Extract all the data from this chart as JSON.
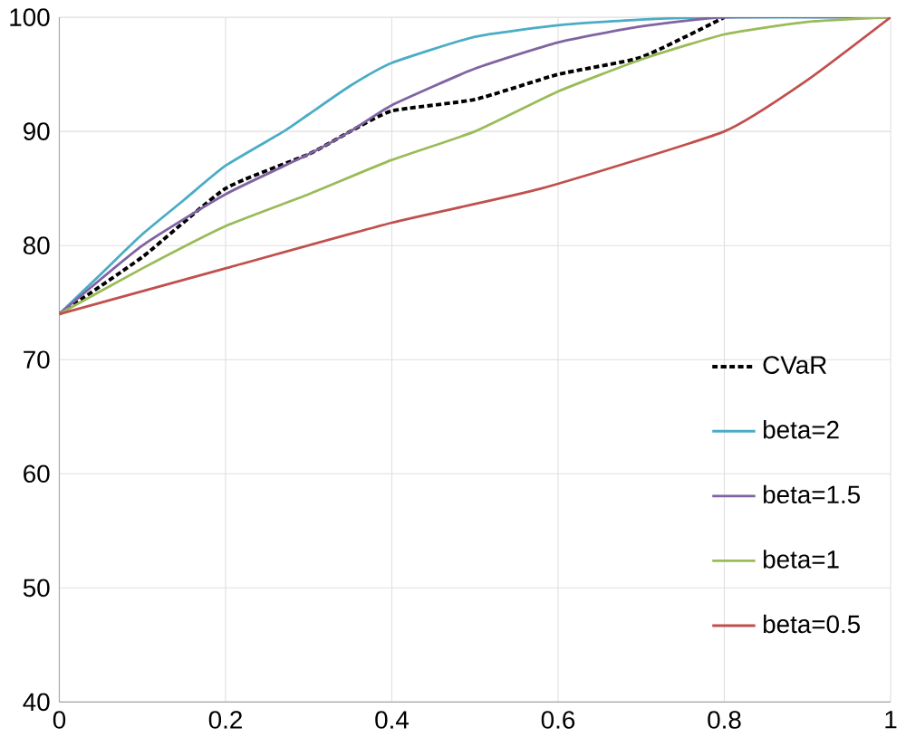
{
  "chart_data": {
    "type": "line",
    "x": [
      0,
      0.1,
      0.2,
      0.3,
      0.35,
      0.4,
      0.5,
      0.6,
      0.7,
      0.8
    ],
    "series": [
      {
        "name": "CVaR",
        "color": "#000000",
        "line_style": "dashed",
        "values": [
          74,
          79,
          85,
          88,
          90,
          91.8,
          92.8,
          95,
          96.5,
          100
        ]
      },
      {
        "name": "beta=2",
        "color": "#4bacc6",
        "x": [
          0,
          0.05,
          0.1,
          0.15,
          0.2,
          0.27,
          0.3,
          0.35,
          0.4,
          0.5,
          0.6,
          0.7,
          0.8,
          1
        ],
        "values": [
          74,
          77.5,
          81,
          84,
          87,
          90,
          91.5,
          94,
          96,
          98.3,
          99.3,
          99.8,
          100,
          100
        ]
      },
      {
        "name": "beta=1.5",
        "color": "#8064a2",
        "x": [
          0,
          0.1,
          0.2,
          0.3,
          0.35,
          0.4,
          0.5,
          0.6,
          0.7,
          0.8,
          1
        ],
        "values": [
          74,
          80,
          84.5,
          88,
          90,
          92.3,
          95.5,
          97.8,
          99.2,
          100,
          100
        ]
      },
      {
        "name": "beta=1",
        "color": "#9bbb59",
        "x": [
          0,
          0.1,
          0.2,
          0.3,
          0.4,
          0.5,
          0.6,
          0.7,
          0.8,
          0.9,
          1
        ],
        "values": [
          74,
          78,
          81.7,
          84.5,
          87.5,
          90,
          93.5,
          96.3,
          98.5,
          99.6,
          100
        ]
      },
      {
        "name": "beta=0.5",
        "color": "#c0504d",
        "x": [
          0,
          0.2,
          0.4,
          0.58,
          0.8,
          0.9,
          1
        ],
        "values": [
          74,
          78,
          82,
          85,
          90,
          94.5,
          100
        ]
      }
    ],
    "xlim": [
      0,
      1
    ],
    "ylim": [
      40,
      100
    ],
    "xticks": [
      0,
      0.2,
      0.4,
      0.6,
      0.8,
      1
    ],
    "yticks": [
      40,
      50,
      60,
      70,
      80,
      90,
      100
    ],
    "grid": true,
    "legend": "right",
    "line_style": "solid"
  }
}
